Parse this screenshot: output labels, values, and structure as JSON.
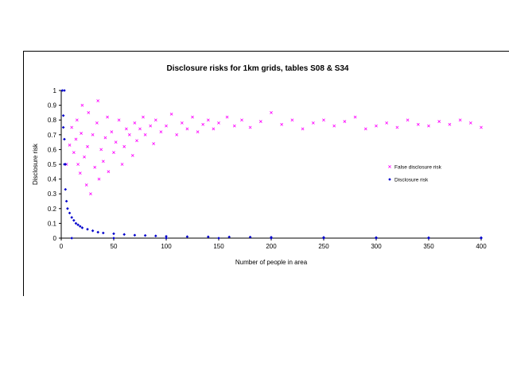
{
  "chart_data": {
    "type": "scatter",
    "title": "Disclosure risks for 1km grids, tables S08 & S34",
    "xlabel": "Number of people in area",
    "ylabel": "Disclosure risk",
    "xlim": [
      0,
      400
    ],
    "ylim": [
      0,
      1
    ],
    "x_ticks": [
      "0",
      "50",
      "100",
      "150",
      "200",
      "250",
      "300",
      "350",
      "400"
    ],
    "y_ticks": [
      "0",
      "0.1",
      "0.2",
      "0.3",
      "0.4",
      "0.5",
      "0.6",
      "0.7",
      "0.8",
      "0.9",
      "1"
    ],
    "grid": false,
    "legend_position": "right",
    "series": [
      {
        "name": "False disclosure risk",
        "color": "#ff00ff",
        "marker": "x",
        "points": [
          [
            5,
            0.5
          ],
          [
            8,
            0.63
          ],
          [
            10,
            0.75
          ],
          [
            12,
            0.58
          ],
          [
            14,
            0.67
          ],
          [
            15,
            0.8
          ],
          [
            16,
            0.5
          ],
          [
            18,
            0.44
          ],
          [
            19,
            0.71
          ],
          [
            20,
            0.9
          ],
          [
            22,
            0.55
          ],
          [
            24,
            0.36
          ],
          [
            25,
            0.62
          ],
          [
            26,
            0.85
          ],
          [
            28,
            0.3
          ],
          [
            30,
            0.7
          ],
          [
            32,
            0.48
          ],
          [
            34,
            0.78
          ],
          [
            35,
            0.93
          ],
          [
            36,
            0.4
          ],
          [
            38,
            0.6
          ],
          [
            40,
            0.52
          ],
          [
            42,
            0.68
          ],
          [
            44,
            0.82
          ],
          [
            45,
            0.45
          ],
          [
            48,
            0.72
          ],
          [
            50,
            0.58
          ],
          [
            52,
            0.65
          ],
          [
            55,
            0.8
          ],
          [
            58,
            0.5
          ],
          [
            60,
            0.62
          ],
          [
            62,
            0.74
          ],
          [
            65,
            0.7
          ],
          [
            68,
            0.56
          ],
          [
            70,
            0.78
          ],
          [
            72,
            0.66
          ],
          [
            75,
            0.74
          ],
          [
            78,
            0.82
          ],
          [
            80,
            0.7
          ],
          [
            85,
            0.76
          ],
          [
            88,
            0.64
          ],
          [
            90,
            0.8
          ],
          [
            95,
            0.72
          ],
          [
            100,
            0.76
          ],
          [
            105,
            0.84
          ],
          [
            110,
            0.7
          ],
          [
            115,
            0.78
          ],
          [
            120,
            0.74
          ],
          [
            125,
            0.82
          ],
          [
            130,
            0.72
          ],
          [
            135,
            0.77
          ],
          [
            140,
            0.8
          ],
          [
            145,
            0.74
          ],
          [
            150,
            0.78
          ],
          [
            158,
            0.82
          ],
          [
            165,
            0.76
          ],
          [
            172,
            0.8
          ],
          [
            180,
            0.75
          ],
          [
            190,
            0.79
          ],
          [
            200,
            0.85
          ],
          [
            210,
            0.77
          ],
          [
            220,
            0.8
          ],
          [
            230,
            0.74
          ],
          [
            240,
            0.78
          ],
          [
            250,
            0.8
          ],
          [
            260,
            0.76
          ],
          [
            270,
            0.79
          ],
          [
            280,
            0.82
          ],
          [
            290,
            0.74
          ],
          [
            300,
            0.76
          ],
          [
            310,
            0.78
          ],
          [
            320,
            0.75
          ],
          [
            330,
            0.8
          ],
          [
            340,
            0.77
          ],
          [
            350,
            0.76
          ],
          [
            360,
            0.79
          ],
          [
            370,
            0.77
          ],
          [
            380,
            0.8
          ],
          [
            390,
            0.78
          ],
          [
            400,
            0.75
          ]
        ]
      },
      {
        "name": "Disclosure risk",
        "color": "#0000cc",
        "marker": "diamond",
        "points": [
          [
            1,
            1.0
          ],
          [
            3,
            1.0
          ],
          [
            2,
            0.83
          ],
          [
            2,
            0.75
          ],
          [
            3,
            0.67
          ],
          [
            3,
            0.5
          ],
          [
            4,
            0.5
          ],
          [
            4,
            0.33
          ],
          [
            5,
            0.25
          ],
          [
            6,
            0.2
          ],
          [
            8,
            0.17
          ],
          [
            10,
            0.14
          ],
          [
            12,
            0.12
          ],
          [
            14,
            0.1
          ],
          [
            16,
            0.09
          ],
          [
            18,
            0.08
          ],
          [
            20,
            0.07
          ],
          [
            25,
            0.06
          ],
          [
            30,
            0.05
          ],
          [
            35,
            0.04
          ],
          [
            40,
            0.035
          ],
          [
            50,
            0.03
          ],
          [
            60,
            0.025
          ],
          [
            70,
            0.02
          ],
          [
            80,
            0.018
          ],
          [
            90,
            0.015
          ],
          [
            100,
            0.012
          ],
          [
            120,
            0.01
          ],
          [
            140,
            0.009
          ],
          [
            160,
            0.008
          ],
          [
            180,
            0.007
          ],
          [
            200,
            0.006
          ],
          [
            250,
            0.005
          ],
          [
            300,
            0.004
          ],
          [
            350,
            0.003
          ],
          [
            400,
            0.003
          ],
          [
            10,
            0.0
          ],
          [
            50,
            0.0
          ],
          [
            100,
            0.0
          ],
          [
            150,
            0.0
          ],
          [
            200,
            0.0
          ],
          [
            250,
            0.0
          ],
          [
            300,
            0.0
          ],
          [
            350,
            0.0
          ],
          [
            400,
            0.0
          ]
        ]
      }
    ]
  }
}
